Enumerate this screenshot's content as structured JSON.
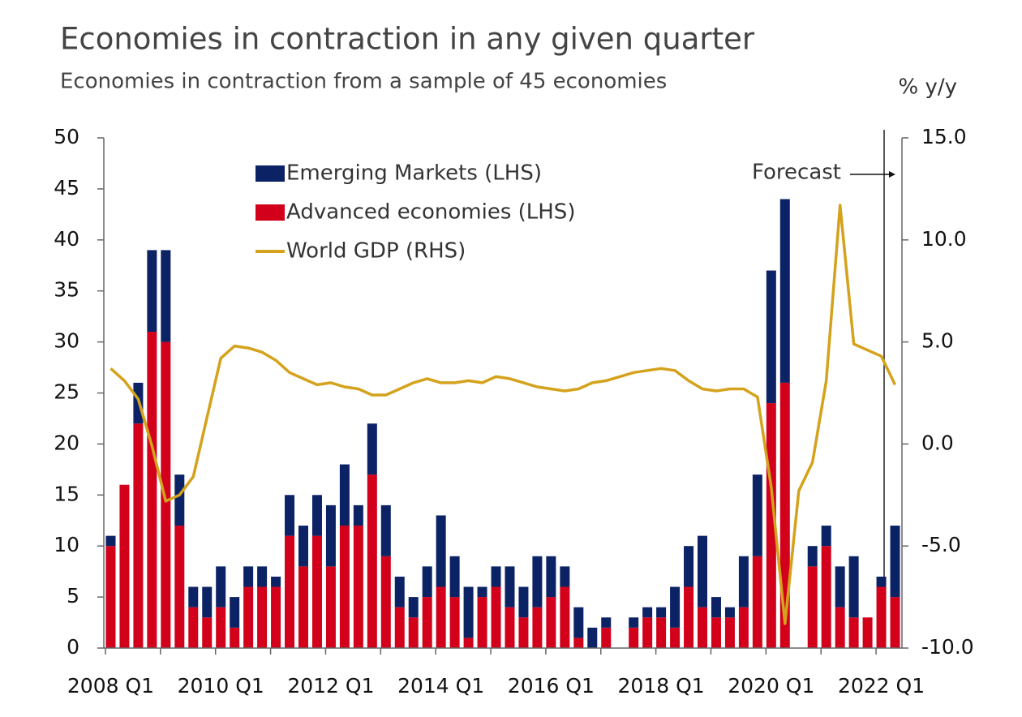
{
  "chart_data": {
    "type": "bar",
    "title": "Economies in contraction in any given quarter",
    "subtitle": "Economies in contraction from a sample of 45 economies",
    "y2_label": "% y/y",
    "annotation": "Forecast",
    "categories": [
      "2008 Q1",
      null,
      null,
      null,
      null,
      null,
      null,
      null,
      "2010 Q1",
      null,
      null,
      null,
      null,
      null,
      null,
      null,
      "2012 Q1",
      null,
      null,
      null,
      null,
      null,
      null,
      null,
      "2014 Q1",
      null,
      null,
      null,
      null,
      null,
      null,
      null,
      "2016 Q1",
      null,
      null,
      null,
      null,
      null,
      null,
      null,
      "2018 Q1",
      null,
      null,
      null,
      null,
      null,
      null,
      null,
      "2020 Q1",
      null,
      null,
      null,
      null,
      null,
      null,
      null,
      "2022 Q1",
      null
    ],
    "series": [
      {
        "name": "Emerging Markets (LHS)",
        "type": "bar",
        "color": "#0b2265",
        "values": [
          1,
          0,
          4,
          8,
          9,
          5,
          2,
          3,
          4,
          3,
          2,
          2,
          1,
          4,
          4,
          4,
          6,
          6,
          2,
          5,
          5,
          3,
          2,
          3,
          7,
          4,
          5,
          1,
          2,
          4,
          3,
          5,
          4,
          2,
          3,
          2,
          1,
          0,
          1,
          1,
          1,
          4,
          4,
          7,
          2,
          1,
          5,
          8,
          13,
          18,
          0,
          2,
          2,
          4,
          6,
          0,
          1,
          7
        ]
      },
      {
        "name": "Advanced economies (LHS)",
        "type": "bar",
        "color": "#d2001a",
        "values": [
          10,
          16,
          22,
          31,
          30,
          12,
          4,
          3,
          4,
          2,
          6,
          6,
          6,
          11,
          8,
          11,
          8,
          12,
          12,
          17,
          9,
          4,
          3,
          5,
          6,
          5,
          1,
          5,
          6,
          4,
          3,
          4,
          5,
          6,
          1,
          0,
          2,
          0,
          2,
          3,
          3,
          2,
          6,
          4,
          3,
          3,
          4,
          9,
          24,
          26,
          0,
          8,
          10,
          4,
          3,
          3,
          6,
          5
        ]
      },
      {
        "name": "World GDP (RHS)",
        "type": "line",
        "axis": "y2",
        "color": "#d4a21c",
        "values": [
          3.7,
          3.1,
          2.2,
          -0.1,
          -2.8,
          -2.5,
          -1.6,
          1.3,
          4.2,
          4.8,
          4.7,
          4.5,
          4.1,
          3.5,
          3.2,
          2.9,
          3.0,
          2.8,
          2.7,
          2.4,
          2.4,
          2.7,
          3.0,
          3.2,
          3.0,
          3.0,
          3.1,
          3.0,
          3.3,
          3.2,
          3.0,
          2.8,
          2.7,
          2.6,
          2.7,
          3.0,
          3.1,
          3.3,
          3.5,
          3.6,
          3.7,
          3.6,
          3.1,
          2.7,
          2.6,
          2.7,
          2.7,
          2.3,
          -2.1,
          -8.8,
          -2.3,
          -0.9,
          3.1,
          11.7,
          4.9,
          4.6,
          4.3,
          2.9
        ]
      }
    ],
    "ylim": [
      0,
      50
    ],
    "yticks": [
      0,
      5,
      10,
      15,
      20,
      25,
      30,
      35,
      40,
      45,
      50
    ],
    "y2lim": [
      -10,
      15
    ],
    "y2ticks": [
      {
        "value": -10,
        "label": "-10.0"
      },
      {
        "value": -5,
        "label": "-5.0"
      },
      {
        "value": 0,
        "label": "0.0"
      },
      {
        "value": 5,
        "label": "5.0"
      },
      {
        "value": 10,
        "label": "10.0"
      },
      {
        "value": 15,
        "label": "15.0"
      }
    ],
    "grid": false,
    "legend": "upper left"
  }
}
